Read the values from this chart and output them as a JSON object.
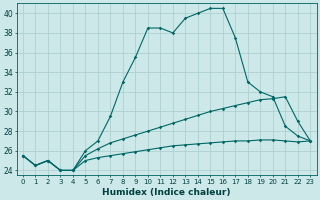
{
  "xlabel": "Humidex (Indice chaleur)",
  "ylabel": "",
  "background_color": "#cce8e8",
  "grid_color": "#aacccc",
  "line_color": "#006666",
  "x_values": [
    0,
    1,
    2,
    3,
    4,
    5,
    6,
    7,
    8,
    9,
    10,
    11,
    12,
    13,
    14,
    15,
    16,
    17,
    18,
    19,
    20,
    21,
    22,
    23
  ],
  "line1_y": [
    25.5,
    24.5,
    25.0,
    24.0,
    24.0,
    26.0,
    27.0,
    29.5,
    33.0,
    35.5,
    38.5,
    38.5,
    38.0,
    39.5,
    40.0,
    40.5,
    40.5,
    37.5,
    33.0,
    32.0,
    31.5,
    28.5,
    27.5,
    27.0
  ],
  "line2_y": [
    25.5,
    24.5,
    25.0,
    24.0,
    24.0,
    25.5,
    26.2,
    26.8,
    27.2,
    27.6,
    28.0,
    28.4,
    28.8,
    29.2,
    29.6,
    30.0,
    30.3,
    30.6,
    30.9,
    31.2,
    31.3,
    31.5,
    29.0,
    27.0
  ],
  "line3_y": [
    25.5,
    24.5,
    25.0,
    24.0,
    24.0,
    25.0,
    25.3,
    25.5,
    25.7,
    25.9,
    26.1,
    26.3,
    26.5,
    26.6,
    26.7,
    26.8,
    26.9,
    27.0,
    27.0,
    27.1,
    27.1,
    27.0,
    26.9,
    27.0
  ],
  "ylim": [
    23.5,
    41
  ],
  "xlim": [
    -0.5,
    23.5
  ],
  "yticks": [
    24,
    26,
    28,
    30,
    32,
    34,
    36,
    38,
    40
  ],
  "xticks": [
    0,
    1,
    2,
    3,
    4,
    5,
    6,
    7,
    8,
    9,
    10,
    11,
    12,
    13,
    14,
    15,
    16,
    17,
    18,
    19,
    20,
    21,
    22,
    23
  ],
  "xtick_fontsize": 5.0,
  "ytick_fontsize": 5.5,
  "xlabel_fontsize": 6.5,
  "marker": "D",
  "marker_size": 1.8,
  "linewidth": 0.8
}
